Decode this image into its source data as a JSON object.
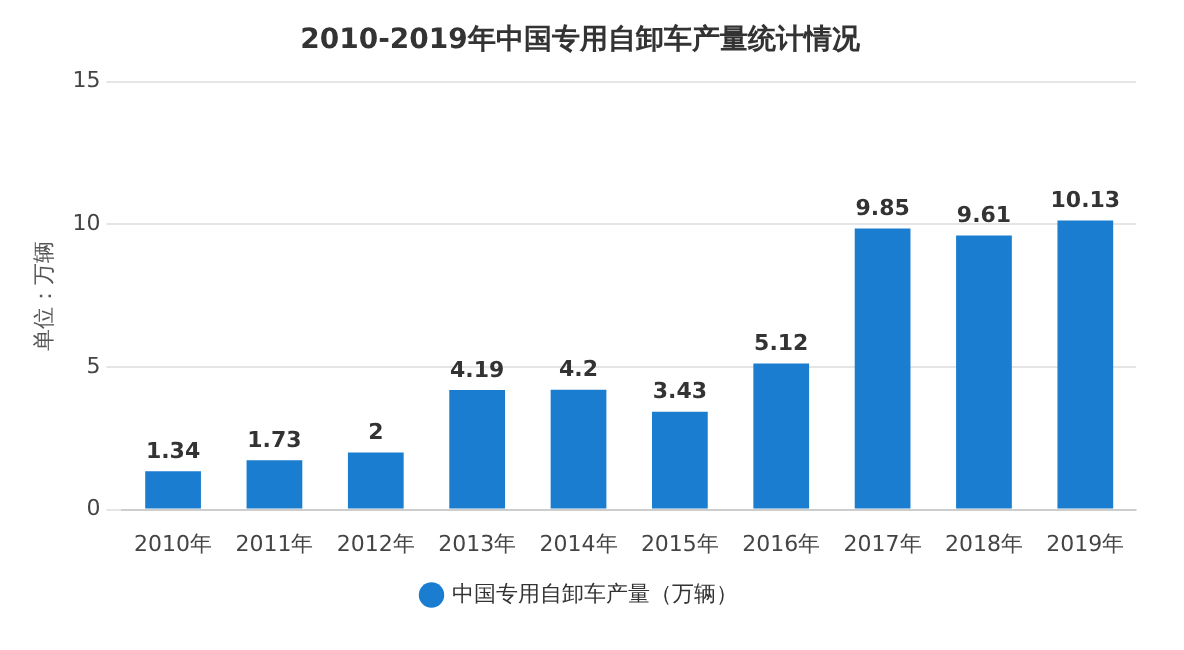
{
  "chart_data": {
    "type": "bar",
    "title": "2010-2019年中国专用自卸车产量统计情况",
    "ylabel": "单位：万辆",
    "categories": [
      "2010年",
      "2011年",
      "2012年",
      "2013年",
      "2014年",
      "2015年",
      "2016年",
      "2017年",
      "2018年",
      "2019年"
    ],
    "series": [
      {
        "name": "中国专用自卸车产量（万辆）",
        "color": "#1a7dd0",
        "values": [
          1.34,
          1.73,
          2,
          4.19,
          4.2,
          3.43,
          5.12,
          9.85,
          9.61,
          10.13
        ]
      }
    ],
    "ylim": [
      0,
      15
    ],
    "yticks": [
      0,
      5,
      10,
      15
    ],
    "grid": "y",
    "legend": "bottom",
    "data_labels": true
  }
}
